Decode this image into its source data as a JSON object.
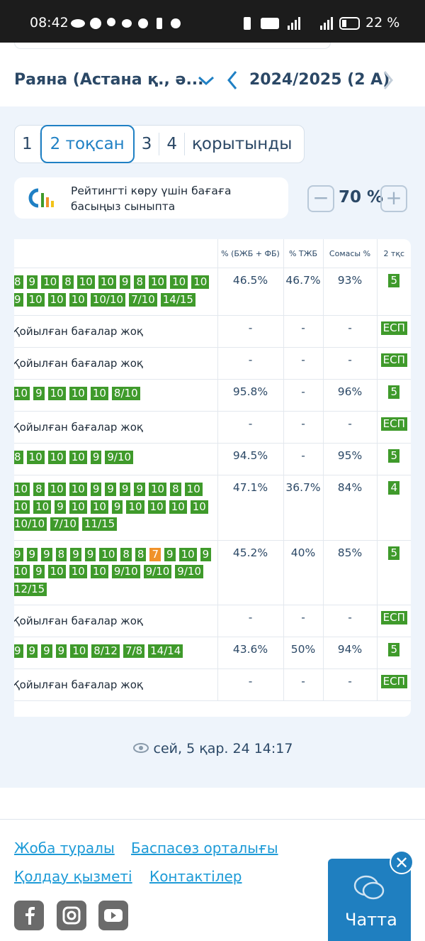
{
  "status": {
    "time": "08:42",
    "battery": "22 %"
  },
  "header": {
    "student": "Раяна (Астана қ., ә...",
    "year": "2024/2025 (2 А)"
  },
  "tabs": [
    "1",
    "2 тоқсан",
    "3",
    "4",
    "қорытынды"
  ],
  "rating": {
    "text": "Рейтингті көру үшін бағаға басыңыз сыныпта",
    "zoom": "70 %"
  },
  "table": {
    "headers": [
      "% (БЖБ + ФБ)",
      "% ТЖБ",
      "Сомасы %",
      "2 тқс"
    ],
    "rows": [
      {
        "grades": [
          "8",
          "9",
          "10",
          "8",
          "10",
          "10",
          "9",
          "8",
          "10",
          "10",
          "10",
          "9",
          "10",
          "10",
          "10",
          "10/10",
          "7/10",
          "14/15"
        ],
        "cells": [
          "46.5%",
          "46.7%",
          "93%",
          "5"
        ]
      },
      {
        "grades": "Қойылған бағалар жоқ",
        "cells": [
          "-",
          "-",
          "-",
          "ЕСП"
        ]
      },
      {
        "grades": "Қойылған бағалар жоқ",
        "cells": [
          "-",
          "-",
          "-",
          "ЕСП"
        ]
      },
      {
        "grades": [
          "10",
          "9",
          "10",
          "10",
          "10",
          "8/10"
        ],
        "cells": [
          "95.8%",
          "-",
          "96%",
          "5"
        ]
      },
      {
        "grades": "Қойылған бағалар жоқ",
        "cells": [
          "-",
          "-",
          "-",
          "ЕСП"
        ]
      },
      {
        "grades": [
          "8",
          "10",
          "10",
          "10",
          "9",
          "9/10"
        ],
        "cells": [
          "94.5%",
          "-",
          "95%",
          "5"
        ]
      },
      {
        "grades": [
          "10",
          "8",
          "10",
          "10",
          "9",
          "9",
          "9",
          "9",
          "10",
          "8",
          "10",
          "10",
          "10",
          "9",
          "10",
          "10",
          "9",
          "10",
          "10",
          "10",
          "10",
          "10/10",
          "7/10",
          "11/15"
        ],
        "cells": [
          "47.1%",
          "36.7%",
          "84%",
          "4"
        ]
      },
      {
        "grades": [
          "9",
          "9",
          "9",
          "8",
          "9",
          "9",
          "10",
          "8",
          "8",
          {
            "text": "7",
            "color": "#f0922a"
          },
          "9",
          "10",
          "9",
          "10",
          "9",
          "10",
          "10",
          "10",
          "9/10",
          "9/10",
          "9/10",
          "12/15"
        ],
        "cells": [
          "45.2%",
          "40%",
          "85%",
          "5"
        ]
      },
      {
        "grades": "Қойылған бағалар жоқ",
        "cells": [
          "-",
          "-",
          "-",
          "ЕСП"
        ]
      },
      {
        "grades": [
          "9",
          "9",
          "9",
          "9",
          "10",
          "8/12",
          "7/8",
          "14/14"
        ],
        "cells": [
          "43.6%",
          "50%",
          "94%",
          "5"
        ]
      },
      {
        "grades": "Қойылған бағалар жоқ",
        "cells": [
          "-",
          "-",
          "-",
          "ЕСП"
        ]
      }
    ]
  },
  "updated": "сей, 5 қар. 24 14:17",
  "footer": {
    "links": [
      "Жоба туралы",
      "Баспасөз орталығы",
      "Қолдау қызметі",
      "Контактілер"
    ],
    "chat": "Чатта"
  }
}
